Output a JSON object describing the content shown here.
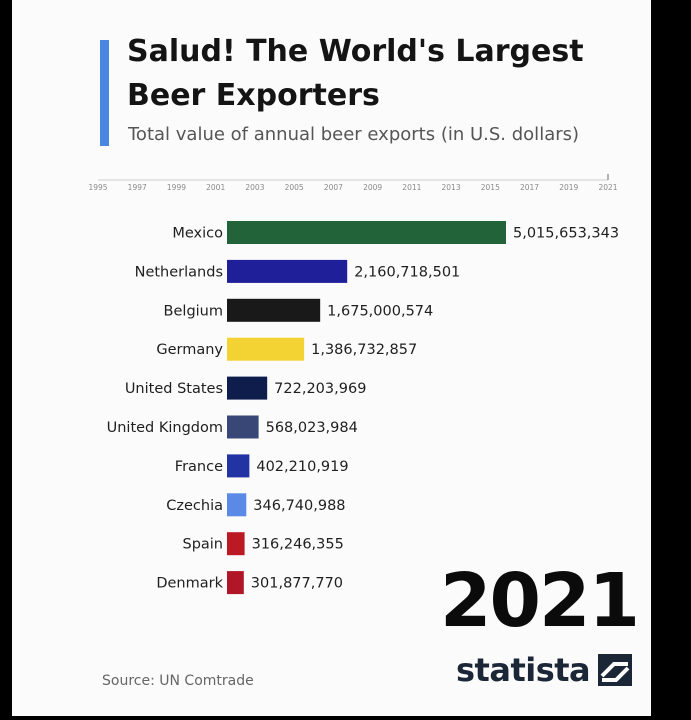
{
  "header": {
    "title": "Salud! The World's Largest Beer Exporters",
    "subtitle": "Total value of annual beer exports (in U.S. dollars)"
  },
  "timeline": {
    "years": [
      "1995",
      "1997",
      "1999",
      "2001",
      "2003",
      "2005",
      "2007",
      "2009",
      "2011",
      "2013",
      "2015",
      "2017",
      "2019",
      "2021"
    ],
    "current": "2021"
  },
  "chart_data": {
    "type": "bar",
    "orientation": "horizontal",
    "title": "Salud! The World's Largest Beer Exporters",
    "subtitle": "Total value of annual beer exports (in U.S. dollars)",
    "year": "2021",
    "categories": [
      "Mexico",
      "Netherlands",
      "Belgium",
      "Germany",
      "United States",
      "United Kingdom",
      "France",
      "Czechia",
      "Spain",
      "Denmark"
    ],
    "values": [
      5015653343,
      2160718501,
      1675000574,
      1386732857,
      722203969,
      568023984,
      402210919,
      346740988,
      316246355,
      301877770
    ],
    "value_labels": [
      "5,015,653,343",
      "2,160,718,501",
      "1,675,000,574",
      "1,386,732,857",
      "722,203,969",
      "568,023,984",
      "402,210,919",
      "346,740,988",
      "316,246,355",
      "301,877,770"
    ],
    "colors": [
      "#23633a",
      "#1f1f9a",
      "#191919",
      "#f3d234",
      "#0f1d4d",
      "#394777",
      "#2233a3",
      "#5a8ae5",
      "#bb1a24",
      "#b01528"
    ],
    "xlim": [
      0,
      5015653343
    ],
    "grid": false,
    "legend": "none"
  },
  "footer": {
    "source": "Source: UN Comtrade",
    "brand": "statista"
  }
}
